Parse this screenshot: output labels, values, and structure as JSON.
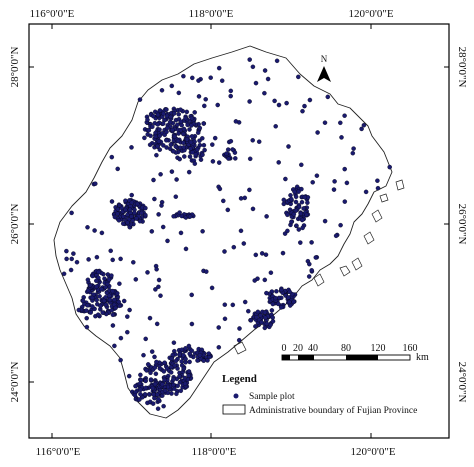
{
  "axes": {
    "top_labels": [
      "116°0'0\"E",
      "118°0'0\"E",
      "120°0'0\"E"
    ],
    "bottom_labels": [
      "116°0'0\"E",
      "118°0'0\"E",
      "120°0'0\"E"
    ],
    "left_labels": [
      "28°0'0\"N",
      "26°0'0\"N",
      "24°0'0\"N"
    ],
    "right_labels": [
      "28°0'0\"N",
      "26°0'0\"N",
      "24°0'0\"N"
    ]
  },
  "north_arrow": {
    "letter": "N"
  },
  "scale_bar": {
    "ticks": [
      "0",
      "20",
      "40",
      "80",
      "120",
      "160"
    ],
    "unit": "km"
  },
  "legend": {
    "title": "Legend",
    "items": [
      {
        "symbol": "dot",
        "label": "Sample plot"
      },
      {
        "symbol": "box",
        "label": "Administrative boundary of Fujian Province"
      }
    ]
  },
  "colors": {
    "sample_plot": "#1a1a6e",
    "boundary": "#222222",
    "frame": "#000000"
  }
}
